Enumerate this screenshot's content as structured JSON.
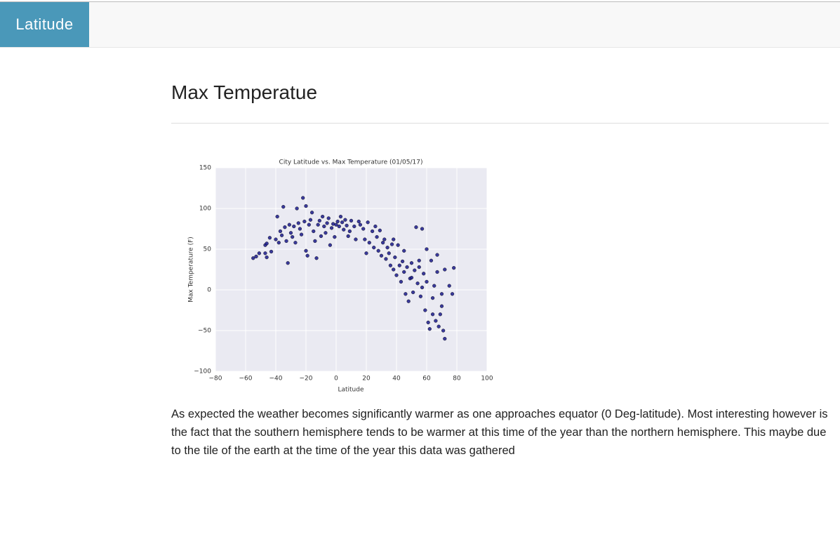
{
  "navbar": {
    "brand": "Latitude"
  },
  "heading": "Max Temperatue",
  "chart_data": {
    "type": "scatter",
    "title": "City Latitude vs. Max Temperature (01/05/17)",
    "x_label": "Latitude",
    "y_label": "Max Temperature (F)",
    "color": "#1a1a8c",
    "grid": true,
    "xlim": [
      -80,
      100
    ],
    "ylim": [
      -100,
      150
    ],
    "xticks": [
      {
        "value": -80,
        "label": "−80"
      },
      {
        "value": -60,
        "label": "−60"
      },
      {
        "value": -40,
        "label": "−40"
      },
      {
        "value": -20,
        "label": "−20"
      },
      0,
      20,
      40,
      60,
      80,
      100
    ],
    "yticks": [
      {
        "value": -100,
        "label": "−100"
      },
      {
        "value": -50,
        "label": "−50"
      },
      0,
      50,
      100,
      150
    ],
    "x": [
      -55,
      -53,
      -51,
      -47,
      -46,
      -47,
      -46,
      -44,
      -43,
      -40,
      -39,
      -38,
      -37,
      -36,
      -35,
      -34,
      -33,
      -32,
      -31,
      -30,
      -29,
      -28,
      -27,
      -26,
      -25,
      -24,
      -23,
      -22,
      -21,
      -20,
      -20,
      -19,
      -18,
      -17,
      -16,
      -15,
      -14,
      -13,
      -12,
      -11,
      -10,
      -9,
      -8,
      -7,
      -6,
      -5,
      -4,
      -3,
      -2,
      -1,
      0,
      1,
      2,
      3,
      4,
      5,
      6,
      7,
      8,
      9,
      10,
      12,
      13,
      15,
      16,
      18,
      19,
      20,
      21,
      22,
      24,
      25,
      26,
      27,
      28,
      29,
      30,
      31,
      32,
      33,
      34,
      35,
      36,
      37,
      38,
      39,
      40,
      41,
      42,
      43,
      44,
      45,
      46,
      47,
      48,
      49,
      50,
      51,
      52,
      53,
      54,
      55,
      56,
      57,
      57,
      58,
      59,
      60,
      61,
      62,
      63,
      64,
      65,
      66,
      67,
      68,
      69,
      70,
      71,
      72,
      72,
      75,
      78,
      77,
      60,
      55,
      45,
      38,
      50,
      67,
      64,
      70
    ],
    "values": [
      39,
      41,
      45,
      55,
      57,
      45,
      40,
      64,
      47,
      62,
      90,
      58,
      72,
      67,
      102,
      77,
      60,
      33,
      80,
      70,
      65,
      78,
      58,
      100,
      82,
      75,
      68,
      113,
      84,
      103,
      48,
      42,
      80,
      86,
      95,
      72,
      60,
      39,
      80,
      85,
      66,
      90,
      78,
      70,
      82,
      88,
      55,
      76,
      81,
      65,
      80,
      84,
      78,
      90,
      83,
      74,
      86,
      79,
      66,
      72,
      85,
      78,
      62,
      84,
      80,
      75,
      62,
      45,
      83,
      58,
      72,
      52,
      78,
      65,
      48,
      73,
      42,
      58,
      62,
      38,
      52,
      45,
      30,
      56,
      25,
      40,
      18,
      55,
      30,
      10,
      35,
      22,
      -5,
      28,
      -14,
      14,
      33,
      -3,
      24,
      77,
      8,
      28,
      -8,
      75,
      3,
      20,
      -25,
      10,
      -40,
      -48,
      36,
      -10,
      5,
      -38,
      22,
      -45,
      -30,
      -20,
      -50,
      -60,
      25,
      5,
      27,
      -5,
      50,
      36,
      48,
      62,
      15,
      43,
      -30,
      -5
    ]
  },
  "paragraph": "As expected the weather becomes significantly warmer as one approaches equator (0 Deg-latitude). Most interesting however is the fact that the southern hemisphere tends to be warmer at this time of the year than the northern hemisphere. This maybe due to the tile of the earth at the time of the year this data was gathered"
}
